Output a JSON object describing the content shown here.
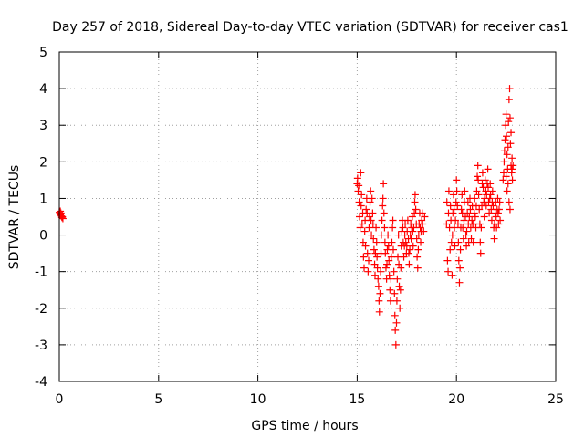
{
  "chart_data": {
    "type": "scatter",
    "title": "Day 257 of 2018, Sidereal Day-to-day VTEC variation (SDTVAR) for receiver cas1",
    "xlabel": "GPS time / hours",
    "ylabel": "SDTVAR / TECUs",
    "xlim": [
      0,
      25
    ],
    "ylim": [
      -4,
      5
    ],
    "xticks": [
      0,
      5,
      10,
      15,
      20,
      25
    ],
    "yticks": [
      -4,
      -3,
      -2,
      -1,
      0,
      1,
      2,
      3,
      4,
      5
    ],
    "grid": true,
    "marker": "+",
    "series": [
      {
        "name": "SDTVAR",
        "color": "#ff0000",
        "points": [
          [
            0.0,
            0.62
          ],
          [
            0.03,
            0.58
          ],
          [
            0.05,
            0.55
          ],
          [
            0.08,
            0.6
          ],
          [
            0.1,
            0.52
          ],
          [
            0.13,
            0.48
          ],
          [
            0.15,
            0.5
          ],
          [
            0.18,
            0.45
          ],
          [
            0.05,
            0.65
          ],
          [
            15.0,
            1.4
          ],
          [
            15.02,
            1.55
          ],
          [
            15.05,
            1.2
          ],
          [
            15.08,
            1.35
          ],
          [
            15.1,
            0.9
          ],
          [
            15.12,
            0.5
          ],
          [
            15.15,
            0.2
          ],
          [
            15.18,
            1.7
          ],
          [
            15.2,
            0.8
          ],
          [
            15.22,
            1.1
          ],
          [
            15.25,
            0.3
          ],
          [
            15.28,
            0.6
          ],
          [
            15.3,
            -0.2
          ],
          [
            15.32,
            -0.6
          ],
          [
            15.35,
            -0.9
          ],
          [
            15.38,
            0.1
          ],
          [
            15.4,
            0.4
          ],
          [
            15.42,
            -0.3
          ],
          [
            15.45,
            0.7
          ],
          [
            15.48,
            1.0
          ],
          [
            15.5,
            0.6
          ],
          [
            15.52,
            -0.5
          ],
          [
            15.55,
            -1.0
          ],
          [
            15.58,
            -0.7
          ],
          [
            15.6,
            0.2
          ],
          [
            15.62,
            0.5
          ],
          [
            15.65,
            0.9
          ],
          [
            15.68,
            1.2
          ],
          [
            15.7,
            0.4
          ],
          [
            15.72,
            0.0
          ],
          [
            15.75,
            1.0
          ],
          [
            15.78,
            0.6
          ],
          [
            15.8,
            0.3
          ],
          [
            15.82,
            -0.1
          ],
          [
            15.85,
            -0.4
          ],
          [
            15.88,
            -0.8
          ],
          [
            15.9,
            -1.1
          ],
          [
            15.92,
            -0.5
          ],
          [
            15.95,
            0.2
          ],
          [
            15.98,
            -0.2
          ],
          [
            16.0,
            -0.6
          ],
          [
            16.02,
            -0.9
          ],
          [
            16.05,
            -1.2
          ],
          [
            16.08,
            -1.4
          ],
          [
            16.1,
            -1.8
          ],
          [
            16.12,
            -2.1
          ],
          [
            16.15,
            -1.6
          ],
          [
            16.18,
            -1.0
          ],
          [
            16.2,
            -0.5
          ],
          [
            16.22,
            0.0
          ],
          [
            16.25,
            0.4
          ],
          [
            16.28,
            0.8
          ],
          [
            16.3,
            1.0
          ],
          [
            16.32,
            1.4
          ],
          [
            16.35,
            0.6
          ],
          [
            16.38,
            0.2
          ],
          [
            16.4,
            -0.2
          ],
          [
            16.42,
            -0.5
          ],
          [
            16.45,
            -0.9
          ],
          [
            16.48,
            -1.2
          ],
          [
            16.5,
            -0.8
          ],
          [
            16.52,
            -0.4
          ],
          [
            16.55,
            0.0
          ],
          [
            16.58,
            -0.3
          ],
          [
            16.6,
            -0.7
          ],
          [
            16.62,
            -1.1
          ],
          [
            16.65,
            -1.5
          ],
          [
            16.68,
            -1.8
          ],
          [
            16.7,
            -1.2
          ],
          [
            16.72,
            -0.6
          ],
          [
            16.75,
            -0.2
          ],
          [
            16.78,
            0.2
          ],
          [
            16.8,
            0.4
          ],
          [
            16.82,
            -0.4
          ],
          [
            16.85,
            -1.0
          ],
          [
            16.88,
            -1.6
          ],
          [
            16.9,
            -2.2
          ],
          [
            16.92,
            -2.6
          ],
          [
            16.95,
            -3.0
          ],
          [
            16.98,
            -2.4
          ],
          [
            17.0,
            -1.8
          ],
          [
            17.02,
            -1.2
          ],
          [
            17.05,
            -0.6
          ],
          [
            17.08,
            0.0
          ],
          [
            17.1,
            -0.8
          ],
          [
            17.12,
            -1.4
          ],
          [
            17.15,
            -2.0
          ],
          [
            17.18,
            -1.5
          ],
          [
            17.2,
            -0.9
          ],
          [
            17.22,
            -0.3
          ],
          [
            17.25,
            0.1
          ],
          [
            17.28,
            0.4
          ],
          [
            17.3,
            0.2
          ],
          [
            17.32,
            -0.2
          ],
          [
            17.35,
            -0.6
          ],
          [
            17.38,
            -0.3
          ],
          [
            17.4,
            0.0
          ],
          [
            17.42,
            0.3
          ],
          [
            17.45,
            -0.2
          ],
          [
            17.48,
            -0.5
          ],
          [
            17.5,
            -0.3
          ],
          [
            17.52,
            0.1
          ],
          [
            17.55,
            0.4
          ],
          [
            17.58,
            -0.1
          ],
          [
            17.6,
            -0.5
          ],
          [
            17.62,
            -0.8
          ],
          [
            17.65,
            -0.4
          ],
          [
            17.68,
            0.0
          ],
          [
            17.7,
            0.3
          ],
          [
            17.72,
            -0.1
          ],
          [
            17.75,
            0.2
          ],
          [
            17.78,
            0.5
          ],
          [
            17.8,
            0.1
          ],
          [
            17.82,
            -0.3
          ],
          [
            17.85,
            0.2
          ],
          [
            17.88,
            0.6
          ],
          [
            17.9,
            0.9
          ],
          [
            17.92,
            1.1
          ],
          [
            17.95,
            0.7
          ],
          [
            17.98,
            0.3
          ],
          [
            18.0,
            -0.1
          ],
          [
            18.02,
            -0.6
          ],
          [
            18.05,
            -0.9
          ],
          [
            18.08,
            -0.4
          ],
          [
            18.1,
            0.0
          ],
          [
            18.12,
            0.3
          ],
          [
            18.15,
            0.6
          ],
          [
            18.18,
            0.2
          ],
          [
            18.2,
            -0.2
          ],
          [
            18.22,
            0.1
          ],
          [
            18.25,
            0.4
          ],
          [
            18.28,
            0.6
          ],
          [
            18.3,
            0.3
          ],
          [
            18.35,
            0.1
          ],
          [
            18.4,
            0.5
          ],
          [
            19.5,
            0.3
          ],
          [
            19.52,
            0.9
          ],
          [
            19.55,
            -0.7
          ],
          [
            19.58,
            -1.0
          ],
          [
            19.6,
            0.6
          ],
          [
            19.62,
            1.2
          ],
          [
            19.65,
            0.2
          ],
          [
            19.68,
            -0.4
          ],
          [
            19.7,
            0.8
          ],
          [
            19.72,
            0.4
          ],
          [
            19.75,
            -0.2
          ],
          [
            19.78,
            -1.1
          ],
          [
            19.8,
            0.0
          ],
          [
            19.82,
            0.6
          ],
          [
            19.85,
            1.1
          ],
          [
            19.88,
            0.7
          ],
          [
            19.9,
            0.2
          ],
          [
            19.92,
            -0.3
          ],
          [
            19.95,
            0.4
          ],
          [
            19.98,
            0.9
          ],
          [
            20.0,
            1.5
          ],
          [
            20.02,
            1.2
          ],
          [
            20.05,
            0.8
          ],
          [
            20.08,
            0.3
          ],
          [
            20.1,
            -0.2
          ],
          [
            20.12,
            -0.7
          ],
          [
            20.15,
            -1.3
          ],
          [
            20.18,
            -0.9
          ],
          [
            20.2,
            -0.4
          ],
          [
            20.22,
            0.2
          ],
          [
            20.25,
            0.7
          ],
          [
            20.28,
            1.1
          ],
          [
            20.3,
            0.6
          ],
          [
            20.32,
            0.2
          ],
          [
            20.35,
            -0.1
          ],
          [
            20.38,
            0.4
          ],
          [
            20.4,
            0.9
          ],
          [
            20.42,
            1.2
          ],
          [
            20.45,
            0.5
          ],
          [
            20.48,
            0.0
          ],
          [
            20.5,
            -0.3
          ],
          [
            20.52,
            0.1
          ],
          [
            20.55,
            0.6
          ],
          [
            20.58,
            0.9
          ],
          [
            20.6,
            0.3
          ],
          [
            20.62,
            -0.2
          ],
          [
            20.65,
            0.5
          ],
          [
            20.68,
            1.0
          ],
          [
            20.7,
            0.7
          ],
          [
            20.72,
            0.2
          ],
          [
            20.75,
            -0.1
          ],
          [
            20.78,
            0.4
          ],
          [
            20.8,
            0.8
          ],
          [
            20.82,
            0.3
          ],
          [
            20.85,
            -0.2
          ],
          [
            20.88,
            0.3
          ],
          [
            20.9,
            0.6
          ],
          [
            20.92,
            1.0
          ],
          [
            20.95,
            0.5
          ],
          [
            20.98,
            0.2
          ],
          [
            21.0,
            0.8
          ],
          [
            21.02,
            1.2
          ],
          [
            21.05,
            1.6
          ],
          [
            21.08,
            1.9
          ],
          [
            21.1,
            1.5
          ],
          [
            21.12,
            1.1
          ],
          [
            21.15,
            0.7
          ],
          [
            21.18,
            0.3
          ],
          [
            21.2,
            -0.2
          ],
          [
            21.22,
            -0.5
          ],
          [
            21.25,
            0.2
          ],
          [
            21.28,
            0.8
          ],
          [
            21.3,
            1.4
          ],
          [
            21.32,
            1.7
          ],
          [
            21.35,
            1.3
          ],
          [
            21.38,
            0.9
          ],
          [
            21.4,
            0.5
          ],
          [
            21.42,
            1.0
          ],
          [
            21.45,
            1.5
          ],
          [
            21.48,
            1.2
          ],
          [
            21.5,
            0.8
          ],
          [
            21.52,
            1.1
          ],
          [
            21.55,
            1.4
          ],
          [
            21.58,
            1.8
          ],
          [
            21.6,
            1.3
          ],
          [
            21.62,
            0.9
          ],
          [
            21.65,
            0.6
          ],
          [
            21.68,
            1.0
          ],
          [
            21.7,
            1.4
          ],
          [
            21.72,
            1.1
          ],
          [
            21.75,
            0.7
          ],
          [
            21.78,
            0.4
          ],
          [
            21.8,
            0.9
          ],
          [
            21.82,
            1.2
          ],
          [
            21.85,
            0.8
          ],
          [
            21.88,
            0.2
          ],
          [
            21.9,
            -0.1
          ],
          [
            21.92,
            0.3
          ],
          [
            21.95,
            0.6
          ],
          [
            21.98,
            0.9
          ],
          [
            22.0,
            0.5
          ],
          [
            22.02,
            0.2
          ],
          [
            22.05,
            0.7
          ],
          [
            22.08,
            1.0
          ],
          [
            22.1,
            0.6
          ],
          [
            22.12,
            0.3
          ],
          [
            22.15,
            0.7
          ],
          [
            22.18,
            0.9
          ],
          [
            22.2,
            0.4
          ],
          [
            22.35,
            1.5
          ],
          [
            22.38,
            1.7
          ],
          [
            22.4,
            2.0
          ],
          [
            22.42,
            2.3
          ],
          [
            22.45,
            2.6
          ],
          [
            22.48,
            3.0
          ],
          [
            22.5,
            3.3
          ],
          [
            22.52,
            2.7
          ],
          [
            22.55,
            2.2
          ],
          [
            22.58,
            1.8
          ],
          [
            22.6,
            2.4
          ],
          [
            22.62,
            3.1
          ],
          [
            22.65,
            3.7
          ],
          [
            22.68,
            4.0
          ],
          [
            22.7,
            3.2
          ],
          [
            22.72,
            2.5
          ],
          [
            22.75,
            1.9
          ],
          [
            22.78,
            1.7
          ],
          [
            22.8,
            2.1
          ],
          [
            22.82,
            1.5
          ],
          [
            22.85,
            1.9
          ],
          [
            22.65,
            0.9
          ],
          [
            22.7,
            0.7
          ],
          [
            22.55,
            1.2
          ],
          [
            22.6,
            1.4
          ],
          [
            22.75,
            2.8
          ],
          [
            22.5,
            1.6
          ],
          [
            22.8,
            1.8
          ]
        ]
      }
    ]
  }
}
